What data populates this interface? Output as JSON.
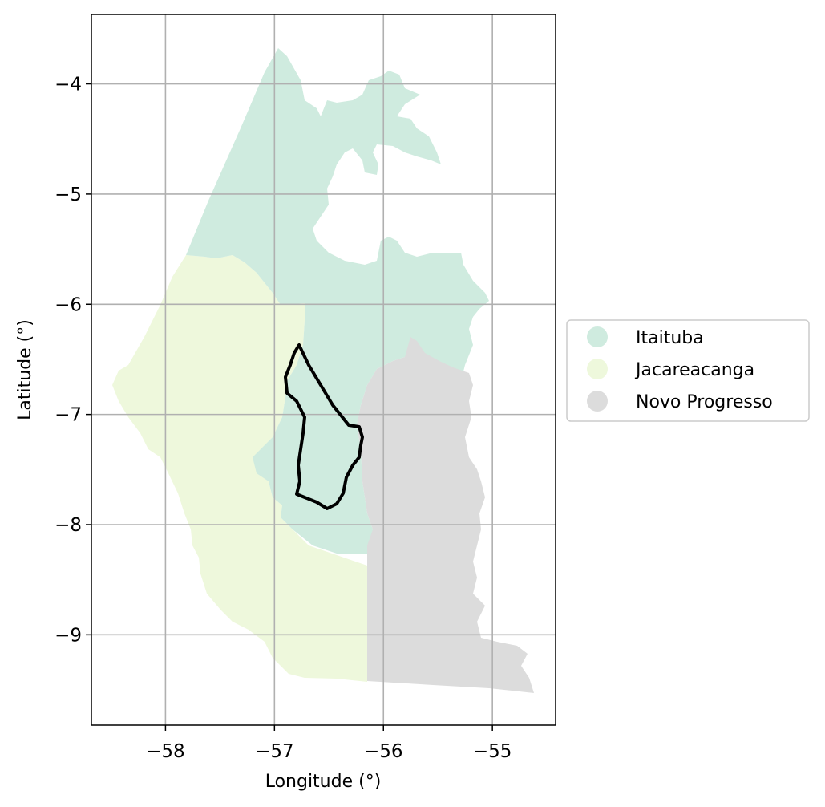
{
  "chart_data": {
    "type": "map",
    "xlabel": "Longitude (°)",
    "ylabel": "Latitude (°)",
    "xlim": [
      -58.68,
      -54.42
    ],
    "ylim": [
      -9.82,
      -3.37
    ],
    "xticks": [
      -58,
      -57,
      -56,
      -55
    ],
    "yticks": [
      -4,
      -5,
      -6,
      -7,
      -8,
      -9
    ],
    "xtick_labels": [
      "−58",
      "−57",
      "−56",
      "−55"
    ],
    "ytick_labels": [
      "−4",
      "−5",
      "−6",
      "−7",
      "−8",
      "−9"
    ],
    "grid": true,
    "legend_position": "right",
    "regions": [
      {
        "name": "Itaituba",
        "color": "#cfebdf"
      },
      {
        "name": "Jacareacanga",
        "color": "#eef8dc"
      },
      {
        "name": "Novo Progresso",
        "color": "#dcdcdc"
      }
    ],
    "outline_color": "#000000"
  }
}
